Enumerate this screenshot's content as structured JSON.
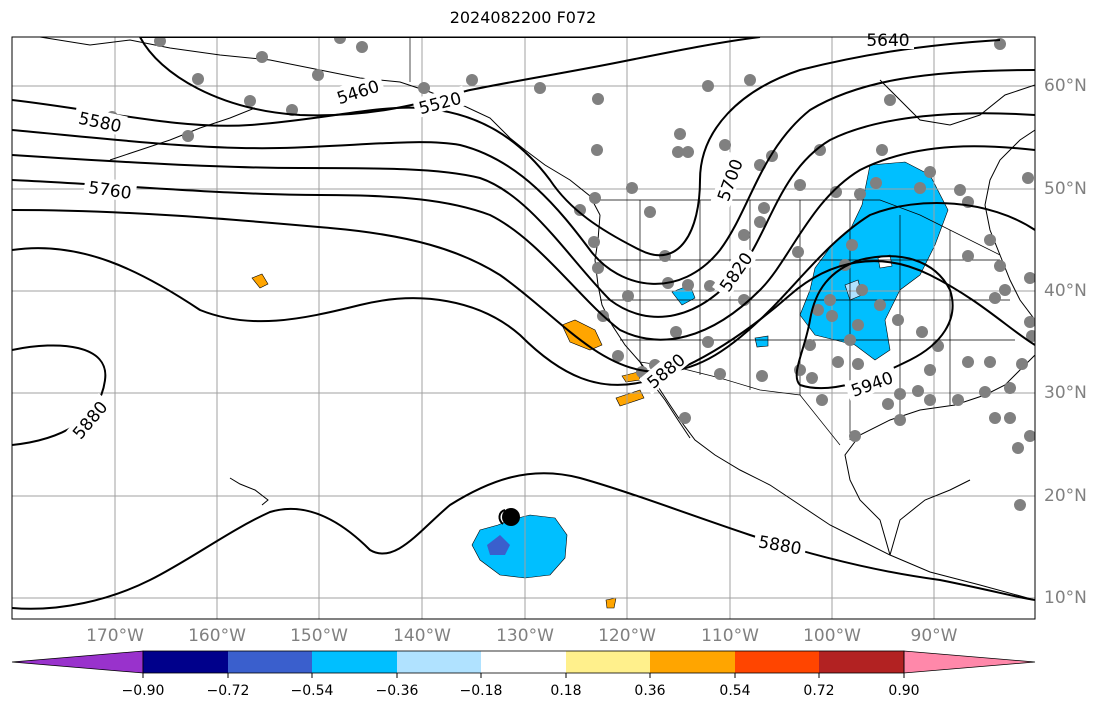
{
  "title": "2024082200 F072",
  "map": {
    "lon_labels": [
      "170°W",
      "160°W",
      "150°W",
      "140°W",
      "130°W",
      "120°W",
      "110°W",
      "100°W",
      "90°W"
    ],
    "lat_labels": [
      "60°N",
      "50°N",
      "40°N",
      "30°N",
      "20°N",
      "10°N"
    ],
    "contour_labels": [
      "5640",
      "5460",
      "5520",
      "5580",
      "5760",
      "5700",
      "5820",
      "5880",
      "5940",
      "5880",
      "5880"
    ],
    "colors": {
      "contour": "#000000",
      "grid": "#a0a0a0",
      "station": "#808080",
      "coast": "#000000"
    }
  },
  "colorbar": {
    "colors": [
      "#9932cc",
      "#00008b",
      "#3a5fcd",
      "#00bfff",
      "#b0e2ff",
      "#ffffff",
      "#fff08c",
      "#ffa500",
      "#ff4500",
      "#b22222",
      "#ff88aa"
    ],
    "tick_labels": [
      "−0.90",
      "−0.72",
      "−0.54",
      "−0.36",
      "−0.18",
      "0.18",
      "0.36",
      "0.54",
      "0.72",
      "0.90"
    ]
  }
}
